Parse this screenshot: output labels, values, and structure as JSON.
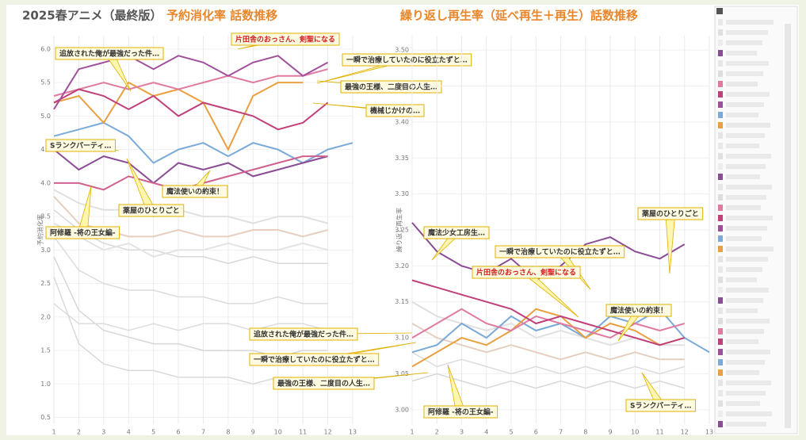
{
  "header": {
    "title": "2025春アニメ（最終版）"
  },
  "chart_data": [
    {
      "type": "line",
      "title": "予約消化率 話数推移",
      "y_label": "予約消化率",
      "categories": [
        "1",
        "2",
        "3",
        "4",
        "5",
        "6",
        "7",
        "8",
        "9",
        "10",
        "11",
        "12",
        "13"
      ],
      "ylim": [
        0.4,
        6.2
      ],
      "yticks": [
        {
          "value": 0.5,
          "label": "0.5"
        },
        {
          "value": 1.0,
          "label": "1.0"
        },
        {
          "value": 1.5,
          "label": "1.5"
        },
        {
          "value": 2.0,
          "label": "2.0"
        },
        {
          "value": 2.5,
          "label": "2.5"
        },
        {
          "value": 3.0,
          "label": "3.0"
        },
        {
          "value": 3.5,
          "label": "3.5"
        },
        {
          "value": 4.0,
          "label": "4.0"
        },
        {
          "value": 4.5,
          "label": "4.5"
        },
        {
          "value": 5.0,
          "label": "5.0"
        },
        {
          "value": 5.5,
          "label": "5.5"
        },
        {
          "value": 6.0,
          "label": "6.0"
        }
      ],
      "grid": true,
      "series": [
        {
          "color": "#d8d8d8",
          "values": [
            3.6,
            3.3,
            3.1,
            3.0,
            3.0,
            2.9,
            2.9,
            2.8,
            2.9,
            2.8,
            2.8,
            2.8,
            null
          ]
        },
        {
          "color": "#dcdcdc",
          "values": [
            3.2,
            2.7,
            2.5,
            2.4,
            2.4,
            2.3,
            2.3,
            2.2,
            2.2,
            2.3,
            2.2,
            2.2,
            null
          ]
        },
        {
          "color": "#d6d6d6",
          "values": [
            2.9,
            2.1,
            1.8,
            1.7,
            1.6,
            1.6,
            1.5,
            1.5,
            1.5,
            1.4,
            1.5,
            1.5,
            null
          ]
        },
        {
          "color": "#e0e0e0",
          "values": [
            3.9,
            3.7,
            3.6,
            3.6,
            3.5,
            3.6,
            3.5,
            3.5,
            3.4,
            3.5,
            3.5,
            3.4,
            null
          ]
        },
        {
          "color": "#d9d9d9",
          "values": [
            2.6,
            1.6,
            1.3,
            1.2,
            1.2,
            1.1,
            1.1,
            1.1,
            1.0,
            1.1,
            1.0,
            1.0,
            null
          ]
        },
        {
          "color": "#e3e3e3",
          "values": [
            3.4,
            3.2,
            3.0,
            3.1,
            2.9,
            3.0,
            3.0,
            3.1,
            3.0,
            3.0,
            3.1,
            3.0,
            null
          ]
        },
        {
          "color": "#dddddd",
          "values": [
            2.2,
            1.9,
            1.9,
            1.8,
            1.9,
            1.8,
            1.9,
            1.9,
            1.8,
            1.9,
            1.9,
            1.8,
            null
          ]
        },
        {
          "color": "#e6cfc0",
          "values": [
            3.8,
            3.4,
            3.3,
            3.2,
            3.2,
            3.3,
            3.2,
            3.2,
            3.3,
            3.3,
            3.2,
            3.3,
            null
          ]
        },
        {
          "color": "#7aaad8",
          "values": [
            4.7,
            4.8,
            4.9,
            4.7,
            4.3,
            4.5,
            4.6,
            4.4,
            4.6,
            4.5,
            4.3,
            4.5,
            4.6
          ]
        },
        {
          "color": "#8a4c94",
          "values": [
            4.5,
            4.2,
            4.4,
            4.3,
            4.0,
            4.3,
            4.2,
            4.3,
            4.1,
            4.2,
            4.3,
            4.4,
            null
          ]
        },
        {
          "color": "#d06090",
          "values": [
            4.0,
            4.0,
            3.9,
            4.1,
            4.0,
            3.9,
            4.0,
            4.1,
            4.2,
            4.3,
            4.4,
            4.4,
            null
          ]
        },
        {
          "color": "#e8a040",
          "values": [
            5.2,
            5.3,
            4.9,
            5.5,
            5.3,
            5.4,
            5.2,
            4.5,
            5.3,
            5.5,
            5.5,
            null,
            null
          ]
        },
        {
          "color": "#e07aa0",
          "values": [
            5.3,
            5.4,
            5.5,
            5.4,
            5.5,
            5.4,
            5.5,
            5.6,
            5.5,
            5.6,
            5.6,
            5.7,
            null
          ]
        },
        {
          "color": "#c0407a",
          "values": [
            5.2,
            5.4,
            5.3,
            5.1,
            5.3,
            5.0,
            5.2,
            5.1,
            5.0,
            4.8,
            4.9,
            5.2,
            null
          ]
        },
        {
          "color": "#a0509a",
          "values": [
            5.1,
            5.7,
            5.8,
            5.9,
            5.7,
            5.9,
            5.8,
            5.6,
            5.8,
            5.9,
            5.6,
            5.8,
            null
          ]
        }
      ],
      "annotations": [
        {
          "text": "片田舎のおっさん、剣聖になる"
        },
        {
          "text": "追放された俺が最強だった件…"
        },
        {
          "text": "一瞬で治療していたのに役立たずと…"
        },
        {
          "text": "最強の王様、二度目の人生…"
        },
        {
          "text": "機械じかけの…"
        },
        {
          "text": "Sランクパーティ…"
        },
        {
          "text": "魔法使いの約束！"
        },
        {
          "text": "薬屋のひとりごと"
        },
        {
          "text": "阿修羅 -将の王女編-"
        }
      ]
    },
    {
      "type": "line",
      "title": "繰り返し再生率（延べ再生＋再生）話数推移",
      "y_label": "繰り返し再生率",
      "categories": [
        "1",
        "2",
        "3",
        "4",
        "5",
        "6",
        "7",
        "8",
        "9",
        "10",
        "11",
        "12",
        "13"
      ],
      "ylim": [
        2.98,
        3.52
      ],
      "yticks": [
        {
          "value": 3.0,
          "label": "3.00"
        },
        {
          "value": 3.05,
          "label": "3.05"
        },
        {
          "value": 3.1,
          "label": "3.10"
        },
        {
          "value": 3.15,
          "label": "3.15"
        },
        {
          "value": 3.2,
          "label": "3.20"
        },
        {
          "value": 3.25,
          "label": "3.25"
        },
        {
          "value": 3.3,
          "label": "3.30"
        },
        {
          "value": 3.35,
          "label": "3.35"
        },
        {
          "value": 3.4,
          "label": "3.40"
        },
        {
          "value": 3.45,
          "label": "3.45"
        },
        {
          "value": 3.5,
          "label": "3.50"
        }
      ],
      "grid": true,
      "series": [
        {
          "color": "#dcdcdc",
          "values": [
            3.08,
            3.06,
            3.07,
            3.06,
            3.05,
            3.06,
            3.05,
            3.06,
            3.05,
            3.06,
            3.05,
            3.06,
            null
          ]
        },
        {
          "color": "#e6cfc0",
          "values": [
            3.12,
            3.1,
            3.09,
            3.08,
            3.09,
            3.08,
            3.07,
            3.08,
            3.07,
            3.08,
            3.07,
            3.07,
            null
          ]
        },
        {
          "color": "#d8d8d8",
          "values": [
            3.04,
            3.05,
            3.04,
            3.03,
            3.04,
            3.03,
            3.04,
            3.03,
            3.04,
            3.03,
            3.04,
            3.03,
            null
          ]
        },
        {
          "color": "#e0e0e0",
          "values": [
            3.15,
            3.13,
            3.12,
            3.11,
            3.12,
            3.1,
            3.11,
            3.1,
            3.09,
            3.1,
            3.09,
            3.09,
            null
          ]
        },
        {
          "color": "#7aaad8",
          "values": [
            3.08,
            3.09,
            3.12,
            3.1,
            3.13,
            3.11,
            3.12,
            3.1,
            3.13,
            3.12,
            3.14,
            3.1,
            3.08
          ]
        },
        {
          "color": "#e8a040",
          "values": [
            3.06,
            3.08,
            3.1,
            3.09,
            3.11,
            3.14,
            3.13,
            3.1,
            3.12,
            3.11,
            3.09,
            3.1,
            null
          ]
        },
        {
          "color": "#e07aa0",
          "values": [
            3.1,
            3.12,
            3.14,
            3.12,
            3.11,
            3.13,
            3.12,
            3.11,
            3.1,
            3.12,
            3.11,
            3.12,
            null
          ]
        },
        {
          "color": "#c0407a",
          "values": [
            3.18,
            3.17,
            3.16,
            3.15,
            3.14,
            3.12,
            3.13,
            3.12,
            3.11,
            3.1,
            3.09,
            3.1,
            null
          ]
        },
        {
          "color": "#8a4c94",
          "values": [
            3.26,
            3.22,
            3.2,
            3.19,
            3.21,
            3.18,
            3.2,
            3.23,
            3.24,
            3.22,
            3.21,
            3.23,
            null
          ]
        }
      ],
      "annotations": [
        {
          "text": "魔法少女工房生…"
        },
        {
          "text": "一瞬で治療していたのに役立たずと…"
        },
        {
          "text": "片田舎のおっさん、剣聖になる"
        },
        {
          "text": "薬屋のひとりごと"
        },
        {
          "text": "魔法使いの約束！"
        },
        {
          "text": "追放された俺が最強だった件…"
        },
        {
          "text": "一瞬で治療していたのに役立たずと…"
        },
        {
          "text": "最強の王様、二度目の人生…"
        },
        {
          "text": "阿修羅 -将の王女編-"
        },
        {
          "text": "Sランクパーティ…"
        }
      ]
    }
  ]
}
